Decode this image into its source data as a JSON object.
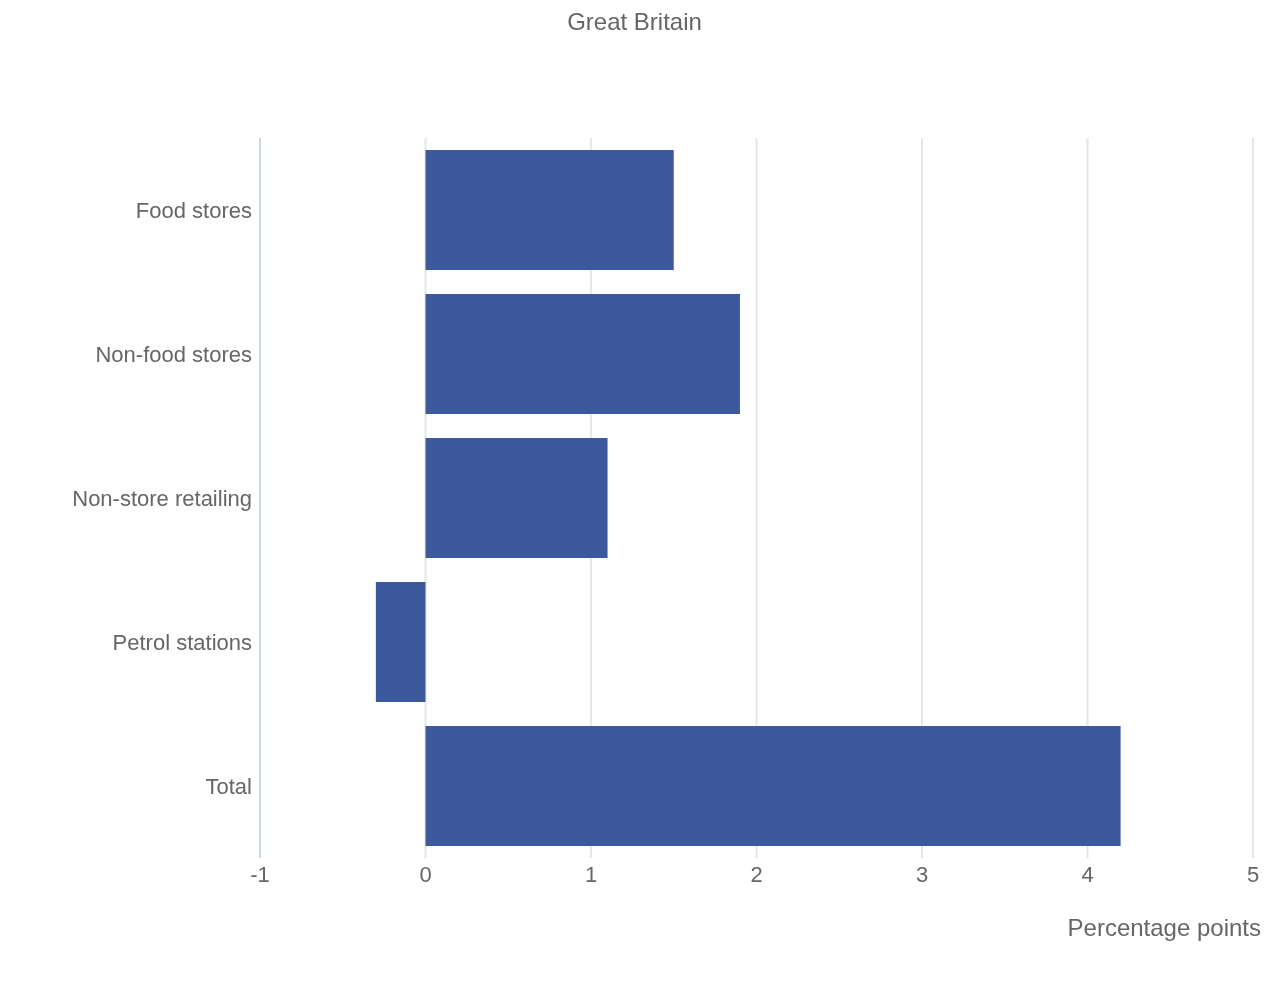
{
  "chart_data": {
    "type": "bar",
    "orientation": "horizontal",
    "title": "Great Britain",
    "xlabel": "Percentage points",
    "categories": [
      "Food stores",
      "Non-food stores",
      "Non-store retailing",
      "Petrol stations",
      "Total"
    ],
    "values": [
      1.5,
      1.9,
      1.1,
      -0.3,
      4.2
    ],
    "color": "#3c599e",
    "xlim": [
      -1,
      5
    ],
    "xticks": [
      -1,
      0,
      1,
      2,
      3,
      4,
      5
    ],
    "grid": "x"
  }
}
